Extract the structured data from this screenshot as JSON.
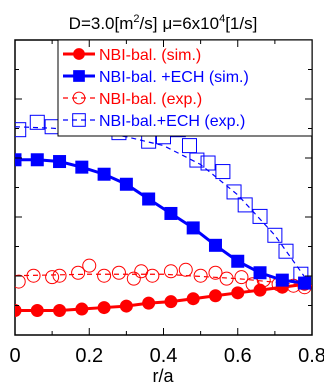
{
  "title": {
    "d_prefix": "D=3.0[m",
    "d_sup": "2",
    "d_suffix": "/s]",
    "mu_prefix": "μ=6x10",
    "mu_sup": "4",
    "mu_suffix": "[1/s]"
  },
  "chart_data": {
    "type": "line",
    "xlabel": "r/a",
    "ylabel": "",
    "xlim": [
      0,
      0.8
    ],
    "ylim": [
      0,
      1
    ],
    "xticks": [
      "0",
      "0.2",
      "0.4",
      "0.6",
      "0.8"
    ],
    "grid": false,
    "legend_position": "top",
    "series": [
      {
        "name": "NBI-bal. (sim.)",
        "color": "#ff0000",
        "style": "solid-filled-circle",
        "x": [
          0,
          0.06,
          0.12,
          0.18,
          0.24,
          0.3,
          0.36,
          0.42,
          0.48,
          0.54,
          0.6,
          0.66,
          0.72,
          0.78
        ],
        "y": [
          0.083,
          0.083,
          0.083,
          0.088,
          0.093,
          0.098,
          0.108,
          0.113,
          0.123,
          0.133,
          0.143,
          0.152,
          0.162,
          0.172
        ]
      },
      {
        "name": "NBI-bal. +ECH (sim.)",
        "color": "#0000ff",
        "style": "solid-filled-square",
        "x": [
          0,
          0.06,
          0.12,
          0.18,
          0.24,
          0.3,
          0.36,
          0.42,
          0.48,
          0.54,
          0.6,
          0.66,
          0.72,
          0.78
        ],
        "y": [
          0.594,
          0.594,
          0.588,
          0.569,
          0.545,
          0.511,
          0.461,
          0.412,
          0.363,
          0.304,
          0.25,
          0.211,
          0.186,
          0.176
        ]
      },
      {
        "name": "NBI-bal. (exp.)",
        "color": "#ff0000",
        "style": "dashed-open-circle",
        "x": [
          0.01,
          0.05,
          0.1,
          0.12,
          0.17,
          0.2,
          0.24,
          0.28,
          0.32,
          0.34,
          0.37,
          0.42,
          0.46,
          0.5,
          0.54,
          0.57,
          0.61,
          0.64,
          0.67,
          0.71,
          0.75,
          0.78
        ],
        "y": [
          0.181,
          0.201,
          0.196,
          0.201,
          0.211,
          0.235,
          0.201,
          0.211,
          0.191,
          0.216,
          0.201,
          0.216,
          0.221,
          0.201,
          0.211,
          0.191,
          0.196,
          0.172,
          0.186,
          0.172,
          0.167,
          0.162
        ]
      },
      {
        "name": "NBI-bal.+ECH (exp.)",
        "color": "#0000ff",
        "style": "dashed-open-square",
        "x": [
          0.01,
          0.06,
          0.1,
          0.14,
          0.19,
          0.23,
          0.28,
          0.32,
          0.36,
          0.4,
          0.44,
          0.47,
          0.49,
          0.52,
          0.56,
          0.59,
          0.62,
          0.66,
          0.7,
          0.73,
          0.77
        ],
        "y": [
          0.696,
          0.721,
          0.706,
          0.755,
          0.74,
          0.721,
          0.686,
          0.706,
          0.657,
          0.672,
          0.696,
          0.642,
          0.593,
          0.583,
          0.554,
          0.485,
          0.441,
          0.402,
          0.338,
          0.284,
          0.206
        ]
      }
    ]
  }
}
